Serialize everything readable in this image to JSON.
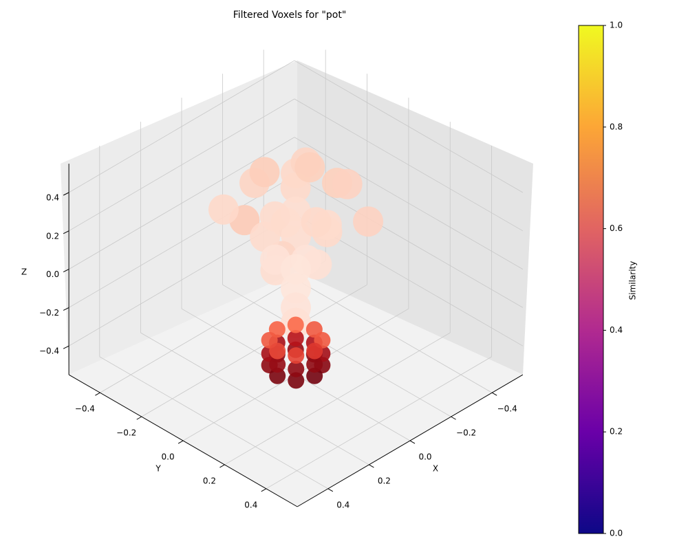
{
  "chart_data": {
    "type": "scatter3d",
    "title": "Filtered Voxels for \"pot\"",
    "xlabel": "X",
    "ylabel": "Y",
    "zlabel": "Z",
    "xlim": [
      -0.55,
      0.55
    ],
    "ylim": [
      -0.55,
      0.55
    ],
    "zlim": [
      -0.55,
      0.55
    ],
    "xticks": [
      {
        "value": -0.4,
        "label": "−0.4"
      },
      {
        "value": -0.2,
        "label": "−0.2"
      },
      {
        "value": 0,
        "label": "0.0"
      },
      0.2,
      0.4
    ],
    "yticks": [
      {
        "value": -0.4,
        "label": "−0.4"
      },
      {
        "value": -0.2,
        "label": "−0.2"
      },
      {
        "value": 0,
        "label": "0.0"
      },
      0.2,
      0.4
    ],
    "zticks": [
      {
        "value": -0.4,
        "label": "−0.4"
      },
      {
        "value": -0.2,
        "label": "−0.2"
      },
      {
        "value": 0,
        "label": "0.0"
      },
      0.2,
      0.4
    ],
    "grid": true,
    "x": [
      0,
      0.1,
      -0.1,
      0.15,
      -0.15,
      0.2,
      -0.2,
      0.05,
      -0.05,
      0.1,
      -0.1,
      0.22,
      -0.22,
      0.15,
      -0.15,
      0,
      0.1,
      -0.1,
      0.05,
      -0.05,
      0.15,
      -0.15,
      0,
      0.05,
      0,
      0,
      0,
      0,
      -0.09,
      -0.064,
      0,
      -0.064,
      0.064,
      0.09,
      0.064,
      0,
      -0.09,
      -0.064,
      0,
      -0.064,
      0.064,
      0.09,
      0.064,
      0,
      -0.09,
      -0.064,
      0,
      -0.064,
      0.064,
      0.09,
      0.064,
      0
    ],
    "y": [
      0,
      -0.1,
      0.1,
      0.1,
      -0.1,
      -0.05,
      0.05,
      0.2,
      -0.2,
      0.1,
      -0.1,
      0.15,
      -0.15,
      -0.2,
      0.2,
      0,
      -0.05,
      0.05,
      0.15,
      -0.15,
      0.05,
      -0.05,
      0.05,
      -0.05,
      0,
      0,
      0,
      0,
      0,
      -0.064,
      -0.09,
      0.064,
      -0.064,
      0,
      0.064,
      0.09,
      0,
      -0.064,
      -0.09,
      0.064,
      -0.064,
      0,
      0.064,
      0.09,
      0,
      -0.064,
      -0.09,
      0.064,
      -0.064,
      0,
      0.064,
      0.09
    ],
    "z": [
      0.5,
      0.45,
      0.45,
      0.4,
      0.4,
      0.35,
      0.35,
      0.35,
      0.35,
      0.3,
      0.3,
      0.3,
      0.3,
      0.28,
      0.28,
      0.3,
      0.2,
      0.2,
      0.15,
      0.15,
      0.12,
      0.12,
      0.08,
      0.05,
      0,
      -0.1,
      -0.2,
      -0.28,
      -0.5,
      -0.5,
      -0.5,
      -0.5,
      -0.5,
      -0.5,
      -0.5,
      -0.5,
      -0.44,
      -0.44,
      -0.44,
      -0.44,
      -0.44,
      -0.44,
      -0.44,
      -0.44,
      -0.37,
      -0.37,
      -0.37,
      -0.37,
      -0.37,
      -0.37,
      -0.37,
      -0.37
    ],
    "values": [
      0.12,
      0.14,
      0.16,
      0.12,
      0.14,
      0.18,
      0.15,
      0.12,
      0.17,
      0.1,
      0.12,
      0.14,
      0.16,
      0.12,
      0.15,
      0.1,
      0.11,
      0.11,
      0.09,
      0.11,
      0.1,
      0.12,
      0.08,
      0.08,
      0.07,
      0.07,
      0.08,
      0.09,
      0.9,
      0.88,
      0.9,
      0.92,
      0.9,
      0.95,
      0.95,
      0.97,
      0.82,
      0.8,
      0.84,
      0.85,
      0.84,
      0.88,
      0.9,
      0.9,
      0.55,
      0.5,
      0.52,
      0.55,
      0.55,
      0.6,
      0.62,
      0.65
    ],
    "marker_colors": [
      "#fff5f0",
      "#fcbba1",
      "#fb6a4a",
      "#cb181d",
      "#67000d"
    ],
    "colorbar": {
      "label": "Similarity",
      "lim": [
        0,
        1
      ],
      "ticks": [
        {
          "value": 0,
          "label": "0.0"
        },
        0.2,
        0.4,
        0.6,
        0.8,
        {
          "value": 1,
          "label": "1.0"
        }
      ],
      "colors": [
        "#0d0887",
        "#6a00a8",
        "#b12a90",
        "#e16462",
        "#fca636",
        "#f0f921"
      ]
    }
  }
}
